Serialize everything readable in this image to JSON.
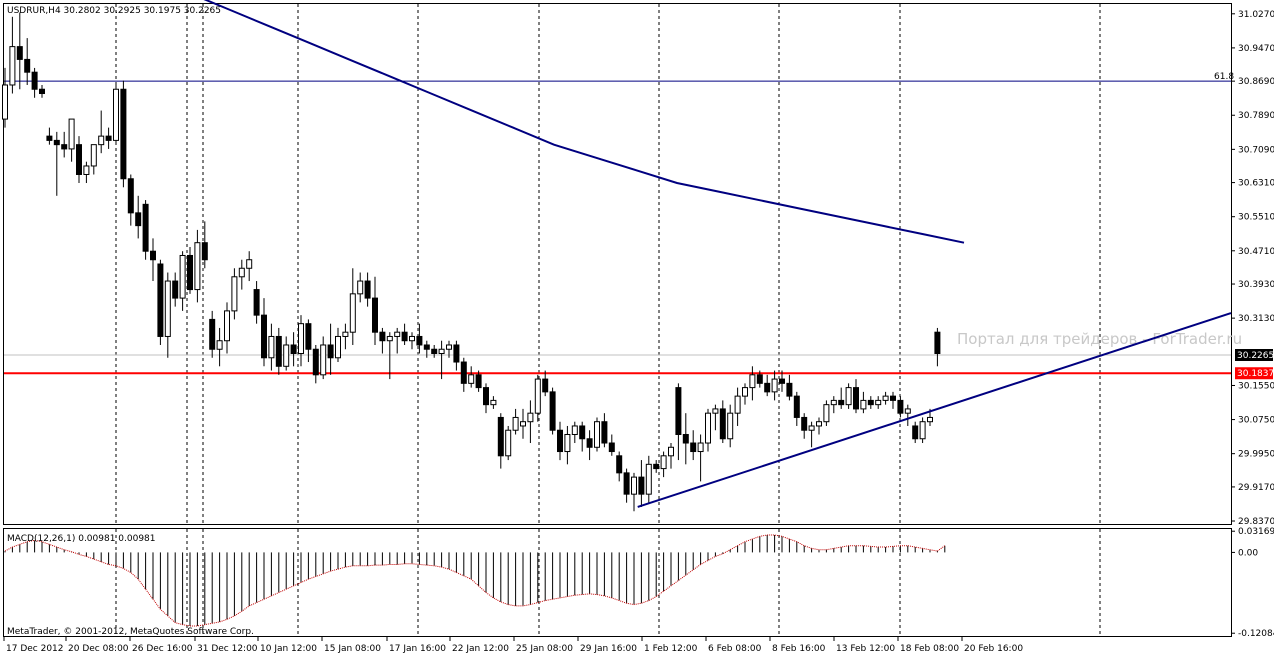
{
  "title": "USDRUR,H4  30.2802 30.2925 30.1975 30.2265",
  "watermark": "Портал для трейдеров - ForTrader.ru",
  "macd_label": "MACD(12,26,1) 0.00981 0.00981",
  "copyright": "MetaTrader, © 2001-2012, MetaQuotes Software Corp.",
  "fib_label": "61.8",
  "colors": {
    "background": "#ffffff",
    "ma": "#000080",
    "trendline": "#000080",
    "support": "#ff0000",
    "bid_tag": "#000000",
    "support_tag": "#ff0000",
    "macd_line": "#c00000"
  },
  "chart_data": {
    "type": "candlestick",
    "symbol": "USDRUR",
    "timeframe": "H4",
    "ohlc_header": {
      "open": 30.2802,
      "high": 30.2925,
      "low": 30.1975,
      "close": 30.2265
    },
    "price_axis_ticks": [
      "31.0270",
      "30.9470",
      "30.8690",
      "30.7890",
      "30.7090",
      "30.6310",
      "30.5510",
      "30.4710",
      "30.3930",
      "30.3130",
      "30.1550",
      "30.0750",
      "29.9950",
      "29.9170",
      "29.8370"
    ],
    "time_axis_labels": [
      "17 Dec 2012",
      "20 Dec 08:00",
      "26 Dec 16:00",
      "31 Dec 12:00",
      "10 Jan 12:00",
      "15 Jan 08:00",
      "17 Jan 16:00",
      "22 Jan 12:00",
      "25 Jan 08:00",
      "29 Jan 16:00",
      "1 Feb 12:00",
      "6 Feb 08:00",
      "8 Feb 16:00",
      "13 Feb 12:00",
      "18 Feb 08:00",
      "20 Feb 16:00"
    ],
    "ylim": [
      29.83,
      31.05
    ],
    "current_bid": "30.2265",
    "support_level": "30.1837",
    "fib_level": 30.869,
    "macd": {
      "params": "12,26,1",
      "value": 0.00981,
      "ticks": [
        "0.03169",
        "0.00",
        "-0.12084"
      ],
      "ylim": [
        -0.125,
        0.035
      ]
    },
    "candles": [
      [
        30.78,
        30.9,
        30.76,
        30.86
      ],
      [
        30.86,
        31.02,
        30.84,
        30.95
      ],
      [
        30.95,
        31.03,
        30.85,
        30.92
      ],
      [
        30.92,
        30.97,
        30.86,
        30.89
      ],
      [
        30.89,
        30.9,
        30.83,
        30.85
      ],
      [
        30.85,
        30.86,
        30.83,
        30.84
      ],
      [
        30.74,
        30.76,
        30.72,
        30.73
      ],
      [
        30.73,
        30.75,
        30.6,
        30.72
      ],
      [
        30.72,
        30.75,
        30.69,
        30.71
      ],
      [
        30.71,
        30.78,
        30.68,
        30.78
      ],
      [
        30.72,
        30.74,
        30.63,
        30.65
      ],
      [
        30.65,
        30.68,
        30.63,
        30.67
      ],
      [
        30.67,
        30.72,
        30.65,
        30.72
      ],
      [
        30.72,
        30.8,
        30.7,
        30.74
      ],
      [
        30.74,
        30.76,
        30.71,
        30.73
      ],
      [
        30.73,
        30.86,
        30.72,
        30.85
      ],
      [
        30.85,
        30.87,
        30.62,
        30.64
      ],
      [
        30.64,
        30.65,
        30.53,
        30.56
      ],
      [
        30.56,
        30.6,
        30.5,
        30.53
      ],
      [
        30.58,
        30.59,
        30.45,
        30.47
      ],
      [
        30.47,
        30.5,
        30.4,
        30.45
      ],
      [
        30.44,
        30.45,
        30.25,
        30.27
      ],
      [
        30.27,
        30.42,
        30.22,
        30.4
      ],
      [
        30.4,
        30.42,
        30.34,
        30.36
      ],
      [
        30.36,
        30.47,
        30.33,
        30.46
      ],
      [
        30.46,
        30.48,
        30.37,
        30.38
      ],
      [
        30.38,
        30.52,
        30.35,
        30.49
      ],
      [
        30.49,
        30.54,
        30.43,
        30.45
      ],
      [
        30.31,
        30.33,
        30.22,
        30.24
      ],
      [
        30.24,
        30.29,
        30.2,
        30.26
      ],
      [
        30.26,
        30.35,
        30.23,
        30.33
      ],
      [
        30.33,
        30.43,
        30.31,
        30.41
      ],
      [
        30.41,
        30.45,
        30.38,
        30.43
      ],
      [
        30.43,
        30.47,
        30.4,
        30.45
      ],
      [
        30.38,
        30.4,
        30.3,
        30.32
      ],
      [
        30.32,
        30.36,
        30.2,
        30.22
      ],
      [
        30.22,
        30.3,
        30.19,
        30.27
      ],
      [
        30.27,
        30.29,
        30.18,
        30.2
      ],
      [
        30.2,
        30.27,
        30.19,
        30.25
      ],
      [
        30.25,
        30.28,
        30.2,
        30.23
      ],
      [
        30.23,
        30.32,
        30.2,
        30.3
      ],
      [
        30.3,
        30.31,
        30.21,
        30.24
      ],
      [
        30.24,
        30.25,
        30.16,
        30.18
      ],
      [
        30.18,
        30.27,
        30.17,
        30.25
      ],
      [
        30.25,
        30.3,
        30.18,
        30.22
      ],
      [
        30.22,
        30.29,
        30.21,
        30.27
      ],
      [
        30.27,
        30.3,
        30.24,
        30.28
      ],
      [
        30.28,
        30.43,
        30.25,
        30.37
      ],
      [
        30.37,
        30.42,
        30.35,
        30.4
      ],
      [
        30.4,
        30.42,
        30.34,
        30.36
      ],
      [
        30.36,
        30.41,
        30.25,
        30.28
      ],
      [
        30.28,
        30.29,
        30.23,
        30.26
      ],
      [
        30.26,
        30.28,
        30.17,
        30.27
      ],
      [
        30.27,
        30.29,
        30.23,
        30.28
      ],
      [
        30.28,
        30.3,
        30.25,
        30.26
      ],
      [
        30.26,
        30.28,
        30.24,
        30.27
      ],
      [
        30.27,
        30.3,
        30.23,
        30.25
      ],
      [
        30.25,
        30.26,
        30.22,
        30.24
      ],
      [
        30.24,
        30.25,
        30.22,
        30.23
      ],
      [
        30.23,
        30.26,
        30.17,
        30.24
      ],
      [
        30.24,
        30.26,
        30.22,
        30.25
      ],
      [
        30.25,
        30.26,
        30.19,
        30.21
      ],
      [
        30.21,
        30.22,
        30.14,
        30.16
      ],
      [
        30.16,
        30.2,
        30.15,
        30.18
      ],
      [
        30.18,
        30.19,
        30.14,
        30.15
      ],
      [
        30.15,
        30.16,
        30.09,
        30.11
      ],
      [
        30.11,
        30.13,
        30.1,
        30.12
      ],
      [
        30.08,
        30.09,
        29.96,
        29.99
      ],
      [
        29.99,
        30.06,
        29.98,
        30.05
      ],
      [
        30.05,
        30.1,
        30.04,
        30.08
      ],
      [
        30.06,
        30.1,
        30.03,
        30.07
      ],
      [
        30.07,
        30.12,
        30.02,
        30.09
      ],
      [
        30.09,
        30.18,
        30.07,
        30.17
      ],
      [
        30.17,
        30.19,
        30.13,
        30.14
      ],
      [
        30.14,
        30.15,
        30.04,
        30.05
      ],
      [
        30.05,
        30.07,
        29.98,
        30.0
      ],
      [
        30.0,
        30.06,
        29.97,
        30.04
      ],
      [
        30.04,
        30.07,
        30.02,
        30.06
      ],
      [
        30.06,
        30.07,
        30.0,
        30.03
      ],
      [
        30.03,
        30.05,
        29.98,
        30.01
      ],
      [
        30.01,
        30.08,
        30.0,
        30.07
      ],
      [
        30.07,
        30.09,
        30.01,
        30.02
      ],
      [
        30.02,
        30.04,
        29.99,
        30.0
      ],
      [
        29.99,
        30.0,
        29.93,
        29.95
      ],
      [
        29.95,
        29.96,
        29.88,
        29.9
      ],
      [
        29.9,
        29.95,
        29.86,
        29.94
      ],
      [
        29.94,
        29.98,
        29.87,
        29.9
      ],
      [
        29.9,
        29.99,
        29.88,
        29.97
      ],
      [
        29.97,
        29.98,
        29.95,
        29.96
      ],
      [
        29.96,
        30.0,
        29.94,
        29.99
      ],
      [
        29.99,
        30.02,
        29.96,
        30.01
      ],
      [
        30.15,
        30.16,
        29.98,
        30.04
      ],
      [
        30.04,
        30.09,
        29.97,
        30.02
      ],
      [
        30.02,
        30.05,
        29.98,
        30.0
      ],
      [
        30.0,
        30.04,
        29.93,
        30.02
      ],
      [
        30.02,
        30.1,
        30.0,
        30.09
      ],
      [
        30.09,
        30.11,
        30.05,
        30.1
      ],
      [
        30.1,
        30.12,
        30.02,
        30.03
      ],
      [
        30.03,
        30.11,
        30.01,
        30.09
      ],
      [
        30.09,
        30.15,
        30.06,
        30.13
      ],
      [
        30.13,
        30.16,
        30.11,
        30.15
      ],
      [
        30.15,
        30.2,
        30.12,
        30.18
      ],
      [
        30.18,
        30.19,
        30.15,
        30.16
      ],
      [
        30.16,
        30.18,
        30.13,
        30.14
      ],
      [
        30.14,
        30.19,
        30.12,
        30.17
      ],
      [
        30.17,
        30.19,
        30.14,
        30.16
      ],
      [
        30.16,
        30.18,
        30.12,
        30.13
      ],
      [
        30.13,
        30.14,
        30.06,
        30.08
      ],
      [
        30.08,
        30.09,
        30.03,
        30.05
      ],
      [
        30.05,
        30.07,
        30.01,
        30.06
      ],
      [
        30.06,
        30.08,
        30.04,
        30.07
      ],
      [
        30.07,
        30.12,
        30.06,
        30.11
      ],
      [
        30.11,
        30.13,
        30.09,
        30.12
      ],
      [
        30.12,
        30.15,
        30.1,
        30.11
      ],
      [
        30.11,
        30.16,
        30.1,
        30.15
      ],
      [
        30.15,
        30.17,
        30.09,
        30.1
      ],
      [
        30.1,
        30.14,
        30.09,
        30.12
      ],
      [
        30.12,
        30.13,
        30.1,
        30.11
      ],
      [
        30.11,
        30.13,
        30.1,
        30.12
      ],
      [
        30.12,
        30.14,
        30.11,
        30.13
      ],
      [
        30.13,
        30.14,
        30.1,
        30.12
      ],
      [
        30.12,
        30.13,
        30.08,
        30.09
      ],
      [
        30.09,
        30.11,
        30.06,
        30.1
      ],
      [
        30.06,
        30.07,
        30.02,
        30.03
      ],
      [
        30.03,
        30.08,
        30.02,
        30.07
      ],
      [
        30.07,
        30.1,
        30.06,
        30.08
      ],
      [
        30.28,
        30.29,
        30.2,
        30.23
      ]
    ],
    "moving_average": [
      [
        30.31,
        31.08
      ],
      [
        30.36,
        31.04
      ],
      [
        30.4,
        31.0
      ],
      [
        30.46,
        30.96
      ],
      [
        30.52,
        30.92
      ],
      [
        30.58,
        30.88
      ],
      [
        30.64,
        30.84
      ],
      [
        30.7,
        30.8
      ],
      [
        30.76,
        30.76
      ],
      [
        30.82,
        30.72
      ],
      [
        30.88,
        30.69
      ],
      [
        30.94,
        30.66
      ],
      [
        31.0,
        30.63
      ],
      [
        31.08,
        30.61
      ],
      [
        31.16,
        30.59
      ],
      [
        31.24,
        30.57
      ],
      [
        31.32,
        30.55
      ],
      [
        31.4,
        30.53
      ],
      [
        31.48,
        30.51
      ],
      [
        31.56,
        30.49
      ]
    ],
    "trendline": {
      "from": [
        85.5,
        29.87
      ],
      "to": [
        160,
        30.325
      ]
    },
    "macd_values": [
      0.002,
      0.008,
      0.012,
      0.016,
      0.018,
      0.016,
      0.012,
      0.008,
      0.004,
      0.001,
      -0.003,
      -0.006,
      -0.01,
      -0.014,
      -0.018,
      -0.02,
      -0.024,
      -0.03,
      -0.04,
      -0.055,
      -0.07,
      -0.085,
      -0.095,
      -0.105,
      -0.108,
      -0.11,
      -0.11,
      -0.108,
      -0.106,
      -0.104,
      -0.1,
      -0.095,
      -0.088,
      -0.08,
      -0.075,
      -0.07,
      -0.065,
      -0.06,
      -0.055,
      -0.05,
      -0.045,
      -0.04,
      -0.036,
      -0.032,
      -0.028,
      -0.025,
      -0.022,
      -0.02,
      -0.02,
      -0.02,
      -0.019,
      -0.019,
      -0.018,
      -0.018,
      -0.017,
      -0.017,
      -0.018,
      -0.019,
      -0.02,
      -0.022,
      -0.025,
      -0.03,
      -0.035,
      -0.04,
      -0.05,
      -0.06,
      -0.068,
      -0.074,
      -0.078,
      -0.08,
      -0.08,
      -0.078,
      -0.075,
      -0.072,
      -0.07,
      -0.068,
      -0.066,
      -0.064,
      -0.063,
      -0.062,
      -0.063,
      -0.065,
      -0.068,
      -0.072,
      -0.076,
      -0.078,
      -0.076,
      -0.072,
      -0.066,
      -0.058,
      -0.05,
      -0.042,
      -0.034,
      -0.026,
      -0.018,
      -0.012,
      -0.006,
      -0.002,
      0.004,
      0.01,
      0.016,
      0.02,
      0.024,
      0.026,
      0.026,
      0.024,
      0.02,
      0.016,
      0.01,
      0.006,
      0.004,
      0.004,
      0.006,
      0.008,
      0.01,
      0.01,
      0.01,
      0.009,
      0.008,
      0.008,
      0.009,
      0.01,
      0.01,
      0.008,
      0.006,
      0.004,
      0.002,
      0.01
    ]
  }
}
